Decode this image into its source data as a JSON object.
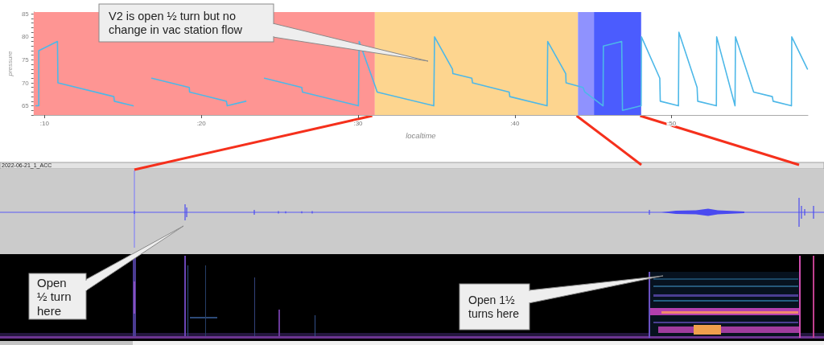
{
  "chart_data": {
    "type": "line",
    "xlabel": "localtime",
    "ylabel": "pressure",
    "x": [
      9.45,
      9.63,
      9.63,
      10.82,
      10.85,
      14.42,
      14.45,
      15.65,
      16.2,
      16.84,
      19.23,
      19.25,
      21.6,
      21.65,
      22.84,
      23.4,
      24.03,
      26.41,
      26.45,
      30.02,
      30.07,
      31.09,
      31.22,
      34.83,
      34.88,
      36.02,
      36.05,
      37.26,
      37.3,
      39.64,
      39.68,
      42.06,
      42.1,
      43.25,
      43.27,
      44.35,
      44.47,
      45.63,
      45.65,
      46.82,
      46.87,
      48.06,
      48.08,
      49.25,
      49.28,
      50.44,
      50.47,
      51.63,
      51.67,
      52.86,
      52.88,
      54.05,
      54.08,
      55.24,
      56.43,
      56.48,
      57.65,
      57.67,
      58.67
    ],
    "series": [
      {
        "color": "#4db8e8",
        "values": [
          65,
          65,
          77,
          79,
          70,
          67,
          66,
          65,
          null,
          71,
          69,
          68,
          66,
          65,
          66,
          null,
          71,
          69,
          68,
          65,
          79,
          69.3,
          68,
          65,
          80,
          73,
          72,
          71,
          70,
          68,
          67,
          65,
          79,
          72,
          70,
          69,
          68,
          65,
          78,
          79,
          64,
          65,
          80,
          71,
          66,
          65,
          81,
          69,
          66,
          65,
          80,
          65,
          80,
          68,
          67,
          66,
          65,
          80,
          73
        ]
      }
    ],
    "xlim": [
      9.3,
      58.7
    ],
    "xticks": [
      {
        "value": 10,
        "label": ":10"
      },
      {
        "value": 20,
        "label": ":20"
      },
      {
        "value": 30,
        "label": ":30"
      },
      {
        "value": 40,
        "label": ":40"
      },
      {
        "value": 50,
        "label": ":50"
      }
    ],
    "ylim": [
      63,
      85.4
    ],
    "yticks": [
      {
        "value": 63,
        "label": null
      },
      {
        "value": 64,
        "label": null
      },
      65,
      {
        "value": 66,
        "label": null
      },
      {
        "value": 67,
        "label": null
      },
      {
        "value": 68,
        "label": null
      },
      {
        "value": 69,
        "label": null
      },
      70,
      {
        "value": 71,
        "label": null
      },
      {
        "value": 72,
        "label": null
      },
      {
        "value": 73,
        "label": null
      },
      {
        "value": 74,
        "label": null
      },
      75,
      {
        "value": 76,
        "label": null
      },
      {
        "value": 77,
        "label": null
      },
      {
        "value": 78,
        "label": null
      },
      {
        "value": 79,
        "label": null
      },
      80,
      {
        "value": 81,
        "label": null
      },
      {
        "value": 82,
        "label": null
      },
      {
        "value": 83,
        "label": null
      },
      {
        "value": 84,
        "label": null
      },
      85
    ],
    "bands": [
      {
        "axis": "x",
        "from": 9.3,
        "to": 31.07,
        "color": "#fe9593"
      },
      {
        "axis": "x",
        "from": 31.07,
        "to": 44.03,
        "color": "#fdd58f"
      },
      {
        "axis": "x",
        "from": 44.03,
        "to": 45.05,
        "color": "#8f92fe"
      },
      {
        "axis": "x",
        "from": 45.05,
        "to": 48.06,
        "color": "#4b5cfe"
      }
    ],
    "annotations": [
      "V2 is open ½ turn but no change in vac station flow",
      "2022-06-21_1_ACC",
      "Open ½ turn here",
      "Open 1½ turns here"
    ],
    "marker": "none"
  }
}
